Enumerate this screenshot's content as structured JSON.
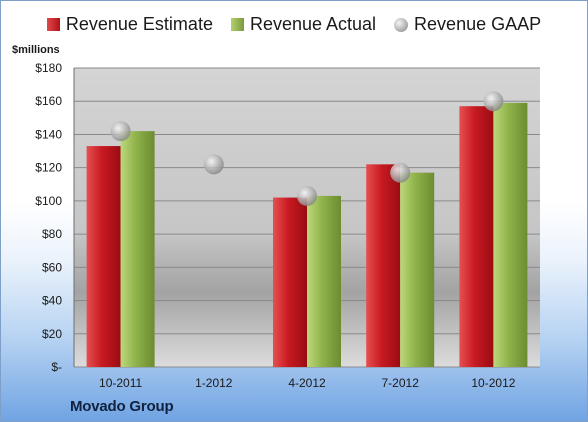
{
  "legend": {
    "estimate": "Revenue Estimate",
    "actual": "Revenue Actual",
    "gaap": "Revenue GAAP"
  },
  "unit_label": "$millions",
  "company": "Movado Group",
  "colors": {
    "estimate": "#c0141b",
    "actual": "#8aae46",
    "gaap": "#b9b9b9"
  },
  "chart_data": {
    "type": "bar",
    "categories": [
      "10-2011",
      "1-2012",
      "4-2012",
      "7-2012",
      "10-2012"
    ],
    "series": [
      {
        "name": "Revenue Estimate",
        "type": "bar",
        "values": [
          133,
          null,
          102,
          122,
          157
        ]
      },
      {
        "name": "Revenue Actual",
        "type": "bar",
        "values": [
          142,
          null,
          103,
          117,
          159
        ]
      },
      {
        "name": "Revenue GAAP",
        "type": "scatter",
        "values": [
          142,
          122,
          103,
          117,
          160
        ]
      }
    ],
    "ylim": [
      0,
      180
    ],
    "yticks": [
      0,
      20,
      40,
      60,
      80,
      100,
      120,
      140,
      160,
      180
    ],
    "ytick_labels": [
      "$-",
      "$20",
      "$40",
      "$60",
      "$80",
      "$100",
      "$120",
      "$140",
      "$160",
      "$180"
    ],
    "ylabel": "$millions",
    "grid": true,
    "legend_position": "top"
  }
}
